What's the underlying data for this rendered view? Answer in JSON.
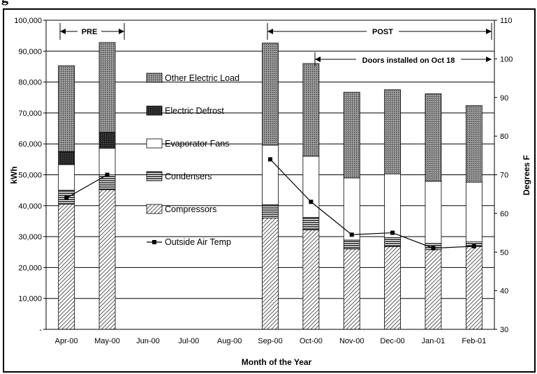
{
  "header_fragment": "g",
  "chart_data": {
    "type": "bar",
    "stacked": true,
    "categories": [
      "Apr-00",
      "May-00",
      "Jun-00",
      "Jul-00",
      "Aug-00",
      "Sep-00",
      "Oct-00",
      "Nov-00",
      "Dec-00",
      "Jan-01",
      "Feb-01"
    ],
    "series": [
      {
        "name": "Compressors",
        "values": [
          40500,
          45200,
          null,
          null,
          null,
          36000,
          32200,
          26000,
          26800,
          25800,
          26800
        ],
        "pattern": "diagonal-hatch"
      },
      {
        "name": "Condensers",
        "values": [
          4500,
          4800,
          null,
          null,
          null,
          4300,
          4000,
          2900,
          2900,
          2000,
          1500
        ],
        "pattern": "horizontal-lines"
      },
      {
        "name": "Evaporator Fans",
        "values": [
          8300,
          8600,
          null,
          null,
          null,
          19300,
          19800,
          20100,
          20600,
          20100,
          19300
        ],
        "pattern": "white"
      },
      {
        "name": "Electric Defrost",
        "values": [
          4200,
          5200,
          null,
          null,
          null,
          0,
          0,
          0,
          0,
          0,
          0
        ],
        "pattern": "dark-crosshatch"
      },
      {
        "name": "Other Electric Load",
        "values": [
          27800,
          29000,
          null,
          null,
          null,
          33000,
          30000,
          27700,
          27200,
          28300,
          24800
        ],
        "pattern": "dotted-grey"
      }
    ],
    "line_series": {
      "name": "Outside Air Temp",
      "axis": "right",
      "values": [
        64,
        70,
        null,
        null,
        null,
        74,
        63,
        54.5,
        55,
        51,
        51.5
      ],
      "color": "#000000"
    },
    "ylabel": "kWh",
    "y2label": "Degrees F",
    "xlabel": "Month of the Year",
    "ylim": [
      0,
      100000
    ],
    "y2lim": [
      30,
      110
    ],
    "yticks": [
      "-",
      "10,000",
      "20,000",
      "30,000",
      "40,000",
      "50,000",
      "60,000",
      "70,000",
      "80,000",
      "90,000",
      "100,000"
    ],
    "y2ticks": [
      "30",
      "40",
      "50",
      "60",
      "70",
      "80",
      "90",
      "100",
      "110"
    ],
    "grid": true,
    "legend_placement": "center-left",
    "annotations": {
      "pre": "PRE",
      "post": "POST",
      "doors": "Doors installed on Oct 18"
    }
  }
}
